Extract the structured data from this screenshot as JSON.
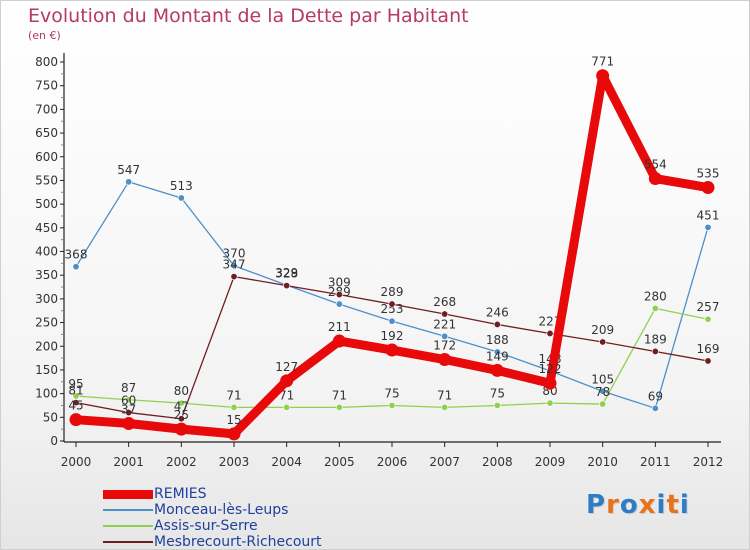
{
  "header": {
    "title": "Evolution du Montant de la Dette par Habitant",
    "subtitle": "(en €)"
  },
  "logo": {
    "text": "Proxiti",
    "colors": [
      "#2e7bc6",
      "#e8721c",
      "#2e7bc6",
      "#e8721c",
      "#2e7bc6",
      "#e8721c",
      "#2e7bc6"
    ]
  },
  "chart_data": {
    "type": "line",
    "title": "Evolution du Montant de la Dette par Habitant",
    "subtitle": "(en €)",
    "xlabel": "",
    "ylabel": "",
    "x": [
      "2000",
      "2001",
      "2002",
      "2003",
      "2004",
      "2005",
      "2006",
      "2007",
      "2008",
      "2009",
      "2010",
      "2011",
      "2012"
    ],
    "ylim": [
      0,
      800
    ],
    "yticks": [
      0,
      50,
      100,
      150,
      200,
      250,
      300,
      350,
      400,
      450,
      500,
      550,
      600,
      650,
      700,
      750,
      800
    ],
    "grid": false,
    "legend_position": "bottom-left",
    "series": [
      {
        "name": "REMIES",
        "color": "#e8090a",
        "emphasis": true,
        "values": [
          45,
          37,
          25,
          15,
          127,
          211,
          192,
          172,
          149,
          122,
          771,
          554,
          535
        ]
      },
      {
        "name": "Monceau-lès-Leups",
        "color": "#4d8fc9",
        "values": [
          368,
          547,
          513,
          370,
          329,
          289,
          253,
          221,
          188,
          148,
          105,
          69,
          451
        ]
      },
      {
        "name": "Assis-sur-Serre",
        "color": "#8fd14f",
        "values": [
          95,
          87,
          80,
          71,
          71,
          71,
          75,
          71,
          75,
          80,
          78,
          280,
          257
        ]
      },
      {
        "name": "Mesbrecourt-Richecourt",
        "color": "#6e1f24",
        "values": [
          81,
          60,
          47,
          347,
          328,
          309,
          289,
          268,
          246,
          227,
          209,
          189,
          169
        ]
      }
    ]
  }
}
